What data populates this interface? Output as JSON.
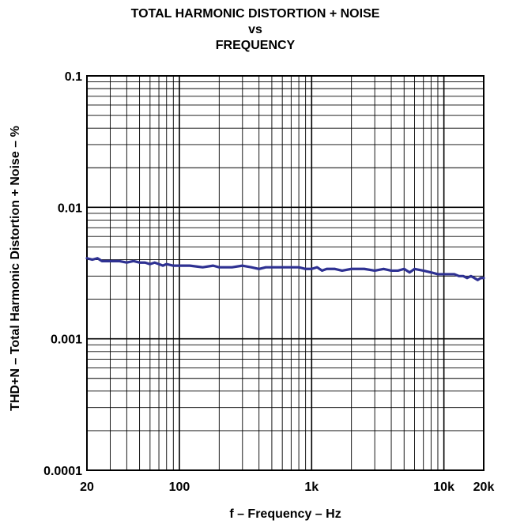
{
  "chart_data": {
    "type": "line",
    "title": [
      "TOTAL HARMONIC DISTORTION + NOISE",
      "vs",
      "FREQUENCY"
    ],
    "xlabel": "f – Frequency – Hz",
    "ylabel": "THD+N – Total Harmonic Distortion + Noise – %",
    "x_scale": "log",
    "y_scale": "log",
    "xlim": [
      20,
      20000
    ],
    "ylim": [
      0.0001,
      0.1
    ],
    "x_ticks": [
      {
        "value": 20,
        "label": "20"
      },
      {
        "value": 100,
        "label": "100"
      },
      {
        "value": 1000,
        "label": "1k"
      },
      {
        "value": 10000,
        "label": "10k"
      },
      {
        "value": 20000,
        "label": "20k"
      }
    ],
    "y_ticks": [
      {
        "value": 0.1,
        "label": "0.1"
      },
      {
        "value": 0.01,
        "label": "0.01"
      },
      {
        "value": 0.001,
        "label": "0.001"
      },
      {
        "value": 0.0001,
        "label": "0.0001"
      }
    ],
    "grid": true,
    "line_color": "#2e3192",
    "series": [
      {
        "x": [
          20,
          22,
          24,
          26,
          30,
          35,
          40,
          45,
          50,
          55,
          60,
          65,
          70,
          75,
          80,
          90,
          100,
          120,
          150,
          180,
          200,
          250,
          300,
          350,
          400,
          450,
          500,
          600,
          700,
          800,
          900,
          1000,
          1100,
          1200,
          1300,
          1500,
          1700,
          2000,
          2500,
          3000,
          3500,
          4000,
          4500,
          5000,
          5500,
          6000,
          7000,
          8000,
          9000,
          10000,
          11000,
          12000,
          13000,
          14000,
          15000,
          16000,
          17000,
          18000,
          19000,
          20000
        ],
        "y": [
          0.0041,
          0.004,
          0.0041,
          0.0039,
          0.0039,
          0.0039,
          0.0038,
          0.0039,
          0.0038,
          0.0038,
          0.0037,
          0.0038,
          0.0037,
          0.0036,
          0.0037,
          0.0036,
          0.0036,
          0.0036,
          0.0035,
          0.0036,
          0.0035,
          0.0035,
          0.0036,
          0.0035,
          0.0034,
          0.0035,
          0.0035,
          0.0035,
          0.0035,
          0.0035,
          0.0034,
          0.0034,
          0.0035,
          0.0033,
          0.0034,
          0.0034,
          0.0033,
          0.0034,
          0.0034,
          0.0033,
          0.0034,
          0.0033,
          0.0033,
          0.0034,
          0.0032,
          0.0034,
          0.0033,
          0.0032,
          0.0031,
          0.0031,
          0.0031,
          0.0031,
          0.003,
          0.003,
          0.0029,
          0.003,
          0.0029,
          0.0028,
          0.0029,
          0.0029
        ]
      }
    ]
  }
}
